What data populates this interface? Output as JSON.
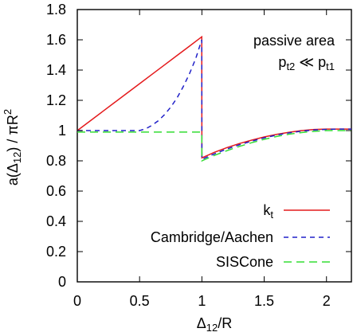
{
  "chart_data": {
    "type": "line",
    "xlim": [
      0,
      2.2
    ],
    "ylim": [
      0,
      1.8
    ],
    "xticks": [
      0,
      0.5,
      1,
      1.5,
      2
    ],
    "yticks": [
      0,
      0.2,
      0.4,
      0.6,
      0.8,
      1,
      1.2,
      1.4,
      1.6,
      1.8
    ],
    "xtick_labels": [
      "0",
      "0.5",
      "1",
      "1.5",
      "2"
    ],
    "ytick_labels": [
      "0",
      "0.2",
      "0.4",
      "0.6",
      "0.8",
      "1",
      "1.2",
      "1.4",
      "1.6",
      "1.8"
    ],
    "xlabel": {
      "text": "Δ",
      "sub": "12",
      "suffix": "/R"
    },
    "ylabel": {
      "prefix": "a(Δ",
      "sub": "12",
      "middle": ") / πR",
      "sup": "2"
    },
    "annotation": {
      "line1": "passive area",
      "line2": {
        "p1": "p",
        "p1_sub": "t2",
        "relation": " ≪ ",
        "p2": "p",
        "p2_sub": "t1"
      }
    },
    "legend_placement": "bottom-right",
    "grid": false,
    "series": [
      {
        "name": "k",
        "name_sub": "t",
        "color": "#e41a1c",
        "style": "solid",
        "x": [
          0,
          0.1,
          0.2,
          0.3,
          0.4,
          0.5,
          0.6,
          0.7,
          0.8,
          0.9,
          0.999,
          1.0,
          1.05,
          1.1,
          1.2,
          1.3,
          1.4,
          1.5,
          1.6,
          1.7,
          1.8,
          1.9,
          2.0,
          2.1,
          2.2
        ],
        "y": [
          1.0,
          1.062,
          1.124,
          1.186,
          1.248,
          1.31,
          1.372,
          1.434,
          1.496,
          1.558,
          1.62,
          0.82,
          0.838,
          0.856,
          0.887,
          0.914,
          0.937,
          0.958,
          0.975,
          0.989,
          1.0,
          1.007,
          1.01,
          1.01,
          1.01
        ]
      },
      {
        "name": "Cambridge/Aachen",
        "color": "#2020c8",
        "style": "dashed",
        "x": [
          0,
          0.1,
          0.2,
          0.3,
          0.4,
          0.5,
          0.55,
          0.6,
          0.65,
          0.7,
          0.75,
          0.8,
          0.85,
          0.9,
          0.95,
          0.999,
          1.0,
          1.05,
          1.1,
          1.2,
          1.3,
          1.4,
          1.5,
          1.6,
          1.7,
          1.8,
          1.9,
          2.0,
          2.1,
          2.2
        ],
        "y": [
          1.0,
          1.0,
          1.0,
          1.0,
          1.0,
          1.0,
          1.012,
          1.035,
          1.065,
          1.105,
          1.155,
          1.215,
          1.29,
          1.375,
          1.475,
          1.6,
          0.81,
          0.828,
          0.846,
          0.878,
          0.906,
          0.93,
          0.952,
          0.97,
          0.985,
          0.996,
          1.004,
          1.008,
          1.01,
          1.01
        ]
      },
      {
        "name": "SISCone",
        "color": "#33dd33",
        "style": "dashed",
        "x": [
          0,
          0.5,
          0.999,
          1.0,
          1.05,
          1.1,
          1.2,
          1.3,
          1.4,
          1.5,
          1.6,
          1.7,
          1.8,
          1.9,
          2.0,
          2.1,
          2.2
        ],
        "y": [
          0.99,
          0.99,
          0.99,
          0.8,
          0.818,
          0.836,
          0.867,
          0.895,
          0.92,
          0.942,
          0.961,
          0.976,
          0.987,
          0.995,
          1.0,
          1.0,
          1.0
        ]
      }
    ]
  }
}
